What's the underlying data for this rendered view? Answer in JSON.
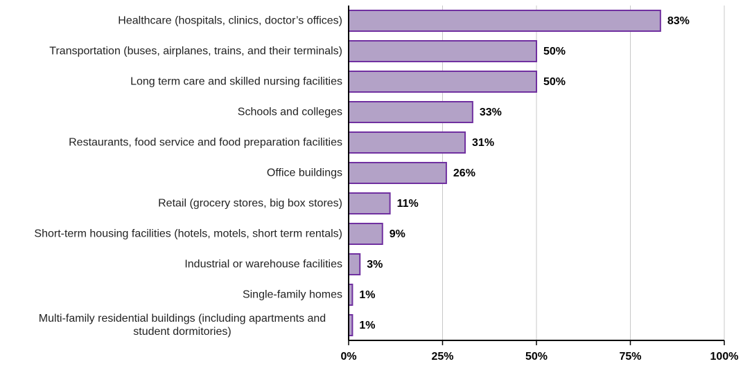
{
  "chart_data": {
    "type": "barh",
    "categories": [
      "Healthcare  (hospitals,  clinics, doctor’s offices)",
      "Transportation (buses, airplanes, trains, and their terminals)",
      "Long term care and skilled nursing facilities",
      "Schools and colleges",
      "Restaurants, food service and food preparation facilities",
      "Office buildings",
      "Retail (grocery stores, big box stores)",
      "Short-term housing facilities (hotels, motels, short term rentals)",
      "Industrial or warehouse facilities",
      "Single-family homes",
      "Multi-family residential buildings (including apartments and student dormitories)"
    ],
    "values": [
      83,
      50,
      50,
      33,
      31,
      26,
      11,
      9,
      3,
      1,
      1
    ],
    "value_labels": [
      "83%",
      "50%",
      "50%",
      "33%",
      "31%",
      "26%",
      "11%",
      "9%",
      "3%",
      "1%",
      "1%"
    ],
    "color": "#b3a2c7",
    "edge_color": "#7030a0",
    "xlim": [
      0,
      100
    ],
    "xticks": [
      {
        "value": 0,
        "label": "0%"
      },
      {
        "value": 25,
        "label": "25%"
      },
      {
        "value": 50,
        "label": "50%"
      },
      {
        "value": 75,
        "label": "75%"
      },
      {
        "value": 100,
        "label": "100%"
      }
    ],
    "grid": true
  }
}
